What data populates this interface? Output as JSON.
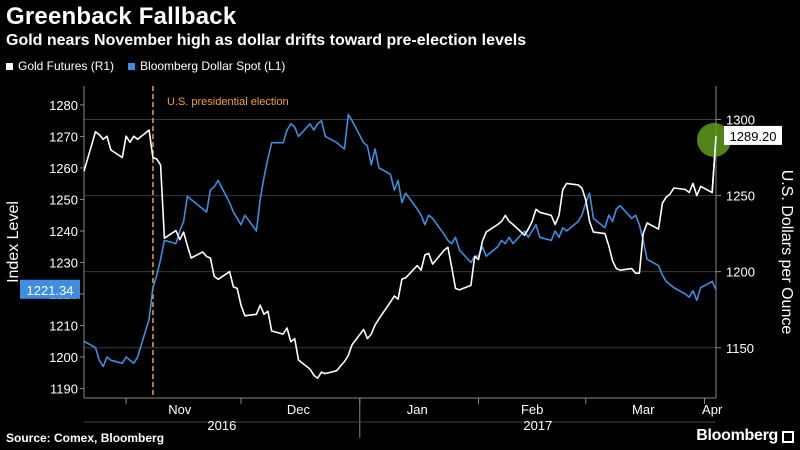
{
  "title": "Greenback Fallback",
  "subtitle": "Gold nears November high as dollar drifts toward pre-election levels",
  "source": "Source: Comex, Bloomberg",
  "brand": "Bloomberg",
  "colors": {
    "gold": "#ffffff",
    "dollar": "#3e8de0",
    "election": "#f0a030",
    "highlight": "#5e9b1a"
  },
  "chart_data": {
    "type": "line",
    "title": "Greenback Fallback",
    "subtitle": "Gold nears November high as dollar drifts toward pre-election levels",
    "legend": [
      "Gold Futures (R1)",
      "Bloomberg Dollar Spot (L1)"
    ],
    "legend_position": "top-left",
    "y_left_label": "Index Level",
    "y_right_label": "U.S. Dollars per Ounce",
    "y_left_ticks": [
      "1190",
      "1200",
      "1210",
      "1220",
      "1230",
      "1240",
      "1250",
      "1260",
      "1270",
      "1280"
    ],
    "y_right_ticks": [
      "1150",
      "1200",
      "1250",
      "1300"
    ],
    "x_month_labels": [
      "Nov",
      "Dec",
      "Jan",
      "Feb",
      "Mar",
      "Apr"
    ],
    "x_year_labels": [
      "2016",
      "2017"
    ],
    "y_left_range": [
      1187,
      1286
    ],
    "y_right_range": [
      1117,
      1322
    ],
    "x_range": [
      "2016-10-21",
      "2017-04-04"
    ],
    "grid": true,
    "annotation": "U.S. presidential election",
    "annotation_date": "2016-11-08",
    "last_values": {
      "dollar": "1221.34",
      "gold": "1289.20"
    },
    "series": [
      {
        "name": "Bloomberg Dollar Spot (L1)",
        "axis": "left",
        "x": [
          "2016-10-21",
          "2016-10-24",
          "2016-10-25",
          "2016-10-26",
          "2016-10-27",
          "2016-10-28",
          "2016-10-31",
          "2016-11-01",
          "2016-11-02",
          "2016-11-03",
          "2016-11-04",
          "2016-11-07",
          "2016-11-08",
          "2016-11-09",
          "2016-11-10",
          "2016-11-11",
          "2016-11-14",
          "2016-11-15",
          "2016-11-16",
          "2016-11-17",
          "2016-11-18",
          "2016-11-21",
          "2016-11-22",
          "2016-11-23",
          "2016-11-24",
          "2016-11-25",
          "2016-11-28",
          "2016-11-29",
          "2016-11-30",
          "2016-12-01",
          "2016-12-02",
          "2016-12-05",
          "2016-12-06",
          "2016-12-07",
          "2016-12-08",
          "2016-12-09",
          "2016-12-12",
          "2016-12-13",
          "2016-12-14",
          "2016-12-15",
          "2016-12-16",
          "2016-12-19",
          "2016-12-20",
          "2016-12-21",
          "2016-12-22",
          "2016-12-23",
          "2016-12-26",
          "2016-12-27",
          "2016-12-28",
          "2016-12-29",
          "2016-12-30",
          "2017-01-02",
          "2017-01-03",
          "2017-01-04",
          "2017-01-05",
          "2017-01-06",
          "2017-01-09",
          "2017-01-10",
          "2017-01-11",
          "2017-01-12",
          "2017-01-13",
          "2017-01-16",
          "2017-01-17",
          "2017-01-18",
          "2017-01-19",
          "2017-01-20",
          "2017-01-23",
          "2017-01-24",
          "2017-01-25",
          "2017-01-26",
          "2017-01-27",
          "2017-01-30",
          "2017-01-31",
          "2017-02-01",
          "2017-02-02",
          "2017-02-03",
          "2017-02-06",
          "2017-02-07",
          "2017-02-08",
          "2017-02-09",
          "2017-02-10",
          "2017-02-13",
          "2017-02-14",
          "2017-02-15",
          "2017-02-16",
          "2017-02-17",
          "2017-02-20",
          "2017-02-21",
          "2017-02-22",
          "2017-02-23",
          "2017-02-24",
          "2017-02-27",
          "2017-02-28",
          "2017-03-01",
          "2017-03-02",
          "2017-03-03",
          "2017-03-06",
          "2017-03-07",
          "2017-03-08",
          "2017-03-09",
          "2017-03-10",
          "2017-03-13",
          "2017-03-14",
          "2017-03-15",
          "2017-03-16",
          "2017-03-17",
          "2017-03-20",
          "2017-03-21",
          "2017-03-22",
          "2017-03-23",
          "2017-03-24",
          "2017-03-27",
          "2017-03-28",
          "2017-03-29",
          "2017-03-30",
          "2017-03-31",
          "2017-04-03",
          "2017-04-04"
        ],
        "values": [
          1205,
          1203,
          1199,
          1197,
          1200,
          1199,
          1198,
          1200,
          1199,
          1198,
          1200,
          1212,
          1222,
          1226,
          1231,
          1237,
          1236,
          1240,
          1243,
          1251,
          1250,
          1247,
          1246,
          1253,
          1254,
          1256,
          1249,
          1246,
          1244,
          1242,
          1245,
          1240,
          1250,
          1257,
          1263,
          1268,
          1268,
          1272,
          1274,
          1273,
          1270,
          1274,
          1272,
          1274,
          1275,
          1270,
          1268,
          1267,
          1266,
          1277,
          1275,
          1268,
          1267,
          1261,
          1266,
          1260,
          1258,
          1253,
          1256,
          1249,
          1252,
          1247,
          1245,
          1242,
          1245,
          1244,
          1239,
          1237,
          1236,
          1238,
          1234,
          1230,
          1232,
          1232,
          1235,
          1232,
          1235,
          1237,
          1236,
          1238,
          1236,
          1240,
          1238,
          1240,
          1242,
          1238,
          1237,
          1240,
          1238,
          1241,
          1240,
          1243,
          1245,
          1249,
          1252,
          1244,
          1241,
          1245,
          1243,
          1247,
          1248,
          1244,
          1245,
          1242,
          1237,
          1231,
          1229,
          1226,
          1224,
          1223,
          1222,
          1220,
          1219,
          1221,
          1218,
          1222,
          1224,
          1221.34
        ]
      },
      {
        "name": "Gold Futures (R1)",
        "axis": "right",
        "x": [
          "2016-10-21",
          "2016-10-24",
          "2016-10-25",
          "2016-10-26",
          "2016-10-27",
          "2016-10-28",
          "2016-10-31",
          "2016-11-01",
          "2016-11-02",
          "2016-11-03",
          "2016-11-04",
          "2016-11-07",
          "2016-11-08",
          "2016-11-09",
          "2016-11-10",
          "2016-11-11",
          "2016-11-14",
          "2016-11-15",
          "2016-11-16",
          "2016-11-17",
          "2016-11-18",
          "2016-11-21",
          "2016-11-22",
          "2016-11-23",
          "2016-11-24",
          "2016-11-25",
          "2016-11-28",
          "2016-11-29",
          "2016-11-30",
          "2016-12-01",
          "2016-12-02",
          "2016-12-05",
          "2016-12-06",
          "2016-12-07",
          "2016-12-08",
          "2016-12-09",
          "2016-12-12",
          "2016-12-13",
          "2016-12-14",
          "2016-12-15",
          "2016-12-16",
          "2016-12-19",
          "2016-12-20",
          "2016-12-21",
          "2016-12-22",
          "2016-12-23",
          "2016-12-26",
          "2016-12-27",
          "2016-12-28",
          "2016-12-29",
          "2016-12-30",
          "2017-01-02",
          "2017-01-03",
          "2017-01-04",
          "2017-01-05",
          "2017-01-06",
          "2017-01-09",
          "2017-01-10",
          "2017-01-11",
          "2017-01-12",
          "2017-01-13",
          "2017-01-16",
          "2017-01-17",
          "2017-01-18",
          "2017-01-19",
          "2017-01-20",
          "2017-01-23",
          "2017-01-24",
          "2017-01-25",
          "2017-01-26",
          "2017-01-27",
          "2017-01-30",
          "2017-01-31",
          "2017-02-01",
          "2017-02-02",
          "2017-02-03",
          "2017-02-06",
          "2017-02-07",
          "2017-02-08",
          "2017-02-09",
          "2017-02-10",
          "2017-02-13",
          "2017-02-14",
          "2017-02-15",
          "2017-02-16",
          "2017-02-17",
          "2017-02-20",
          "2017-02-21",
          "2017-02-22",
          "2017-02-23",
          "2017-02-24",
          "2017-02-27",
          "2017-02-28",
          "2017-03-01",
          "2017-03-02",
          "2017-03-03",
          "2017-03-06",
          "2017-03-07",
          "2017-03-08",
          "2017-03-09",
          "2017-03-10",
          "2017-03-13",
          "2017-03-14",
          "2017-03-15",
          "2017-03-16",
          "2017-03-17",
          "2017-03-20",
          "2017-03-21",
          "2017-03-22",
          "2017-03-23",
          "2017-03-24",
          "2017-03-27",
          "2017-03-28",
          "2017-03-29",
          "2017-03-30",
          "2017-03-31",
          "2017-04-03",
          "2017-04-04"
        ],
        "values": [
          1266,
          1292,
          1290,
          1287,
          1289,
          1280,
          1275,
          1289,
          1285,
          1289,
          1287,
          1293,
          1275,
          1274,
          1270,
          1222,
          1227,
          1221,
          1226,
          1217,
          1209,
          1213,
          1210,
          1209,
          1197,
          1195,
          1200,
          1190,
          1189,
          1178,
          1171,
          1172,
          1178,
          1172,
          1174,
          1161,
          1159,
          1163,
          1154,
          1156,
          1142,
          1136,
          1132,
          1130,
          1134,
          1133,
          1135,
          1138,
          1141,
          1145,
          1152,
          1162,
          1156,
          1159,
          1165,
          1169,
          1180,
          1184,
          1182,
          1195,
          1196,
          1204,
          1201,
          1211,
          1212,
          1205,
          1214,
          1216,
          1203,
          1189,
          1188,
          1191,
          1210,
          1208,
          1220,
          1226,
          1231,
          1233,
          1237,
          1233,
          1231,
          1224,
          1228,
          1233,
          1241,
          1239,
          1237,
          1231,
          1237,
          1254,
          1258,
          1257,
          1255,
          1247,
          1233,
          1226,
          1225,
          1217,
          1207,
          1202,
          1201,
          1202,
          1199,
          1199,
          1225,
          1232,
          1228,
          1245,
          1249,
          1251,
          1255,
          1254,
          1252,
          1258,
          1250,
          1256,
          1252,
          1289.2
        ]
      }
    ]
  }
}
